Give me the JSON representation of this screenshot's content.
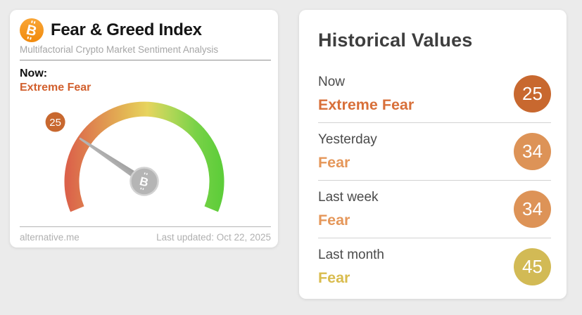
{
  "left_card": {
    "title": "Fear & Greed Index",
    "subtitle": "Multifactorial Crypto Market Sentiment Analysis",
    "now_label": "Now:",
    "now_classification": "Extreme Fear",
    "now_color": "#d2602e",
    "footer": {
      "source": "alternative.me",
      "last_updated": "Last updated: Oct 22, 2025"
    },
    "bitcoin_icon": {
      "glyph": "B",
      "color": "#f7931a"
    }
  },
  "right_card": {
    "title": "Historical Values",
    "rows": [
      {
        "label": "Now",
        "classification": "Extreme Fear",
        "value": 25,
        "text_color": "#d8703a",
        "badge_color": "#c8682f"
      },
      {
        "label": "Yesterday",
        "classification": "Fear",
        "value": 34,
        "text_color": "#e5975a",
        "badge_color": "#dd9357"
      },
      {
        "label": "Last week",
        "classification": "Fear",
        "value": 34,
        "text_color": "#e5975a",
        "badge_color": "#dd9357"
      },
      {
        "label": "Last month",
        "classification": "Fear",
        "value": 45,
        "text_color": "#d9bc4e",
        "badge_color": "#d2ba55"
      }
    ]
  },
  "chart_data": {
    "type": "gauge",
    "title": "Fear & Greed Index",
    "subtitle": "Multifactorial Crypto Market Sentiment Analysis",
    "value": 25,
    "min": 0,
    "max": 100,
    "classification": "Extreme Fear",
    "sweep_deg": 225,
    "start_angle_deg_from_east_ccw": 202.5,
    "gradient_stops": [
      "#db624a",
      "#df8a50",
      "#e3b654",
      "#e7d45e",
      "#b5d758",
      "#78d247",
      "#5ecd3a"
    ],
    "value_bubble_color": "#c8682f",
    "needle_color": "#a8a8a8",
    "historical": [
      {
        "label": "Now",
        "classification": "Extreme Fear",
        "value": 25
      },
      {
        "label": "Yesterday",
        "classification": "Fear",
        "value": 34
      },
      {
        "label": "Last week",
        "classification": "Fear",
        "value": 34
      },
      {
        "label": "Last month",
        "classification": "Fear",
        "value": 45
      }
    ],
    "source": "alternative.me",
    "last_updated": "Oct 22, 2025"
  }
}
